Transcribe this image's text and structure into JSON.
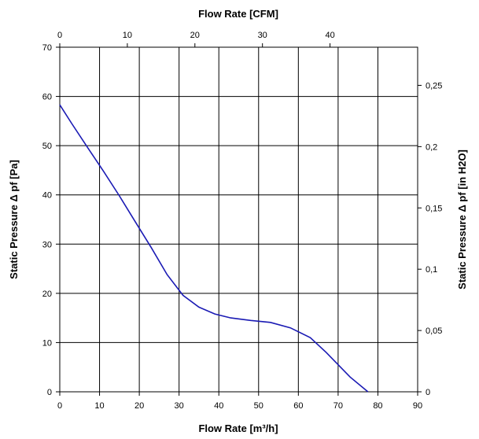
{
  "chart_data": {
    "type": "line",
    "xlabel": "Flow Rate [m³/h]",
    "x2label": "Flow Rate [CFM]",
    "ylabel": "Static Pressure Δ pf [Pa]",
    "y2label": "Static Pressure Δ pf [in H2O]",
    "xlim": [
      0,
      90
    ],
    "ylim": [
      0,
      70
    ],
    "x2lim": [
      0,
      52.97
    ],
    "y2lim": [
      0,
      0.2811
    ],
    "grid": true,
    "x_ticks": [
      "0",
      "10",
      "20",
      "30",
      "40",
      "50",
      "60",
      "70",
      "80",
      "90"
    ],
    "y_ticks": [
      "0",
      "10",
      "20",
      "30",
      "40",
      "50",
      "60",
      "70"
    ],
    "x2_ticks": [
      "0",
      "10",
      "20",
      "30",
      "40"
    ],
    "y2_ticks": [
      "0",
      "0,05",
      "0,1",
      "0,15",
      "0,2",
      "0,25"
    ],
    "series": [
      {
        "x": [
          0,
          3,
          7,
          11,
          15,
          19,
          23,
          27,
          31,
          35,
          39,
          43,
          48,
          53,
          58,
          63,
          67,
          70,
          73,
          77.5
        ],
        "y": [
          58.3,
          54.5,
          49.6,
          44.8,
          39.8,
          34.5,
          29.3,
          23.8,
          19.6,
          17.2,
          15.8,
          15.0,
          14.5,
          14.1,
          13.0,
          11.0,
          8.0,
          5.5,
          3.0,
          0
        ]
      }
    ]
  },
  "colors": {
    "series": "#1a1ab4",
    "grid": "#000000"
  }
}
